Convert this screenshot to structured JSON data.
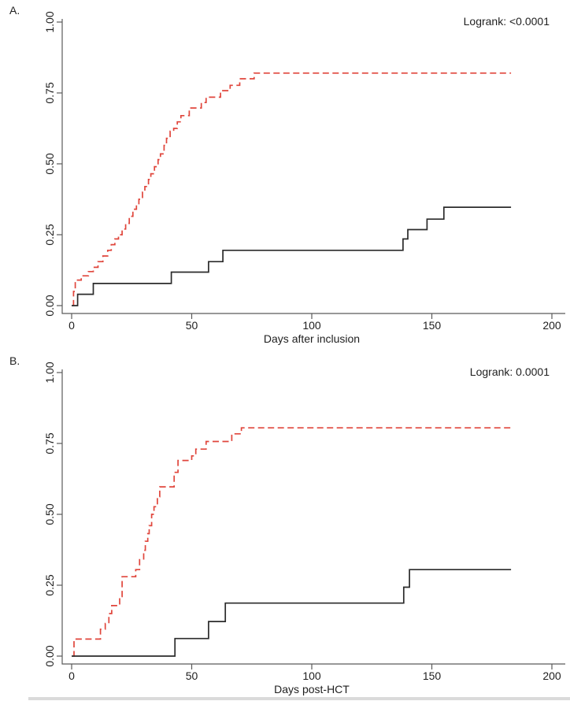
{
  "figure": {
    "background": "#ffffff",
    "bottom_rule_color": "#dadada"
  },
  "colors": {
    "red_series": "#e0463c",
    "black_series": "#2b2b2b",
    "axis": "#5a5a5a",
    "text": "#1f1f1f"
  },
  "chart_data": [
    {
      "type": "line",
      "subtype": "step-cumulative-incidence",
      "panel_label": "A.",
      "annotation": "Logrank: <0.0001",
      "title": "",
      "xlabel": "Days after inclusion",
      "ylabel": "",
      "xlim": [
        0,
        200
      ],
      "ylim": [
        0,
        1
      ],
      "grid": false,
      "legend": "none",
      "xticks": [
        0,
        50,
        100,
        150,
        200
      ],
      "xtick_labels": [
        "0",
        "50",
        "100",
        "150",
        "200"
      ],
      "yticks": [
        0,
        0.25,
        0.5,
        0.75,
        1
      ],
      "ytick_labels": [
        "0.00",
        "0.25",
        "0.50",
        "0.75",
        "1.00"
      ],
      "series": [
        {
          "name": "red-dashed",
          "color": "#e0463c",
          "line_style": "dashed",
          "end_x": 183,
          "points": [
            [
              0.5,
              0
            ],
            [
              0.8,
              0.05
            ],
            [
              1.5,
              0.09
            ],
            [
              4,
              0.105
            ],
            [
              7,
              0.12
            ],
            [
              9,
              0.135
            ],
            [
              11,
              0.155
            ],
            [
              13,
              0.175
            ],
            [
              15,
              0.195
            ],
            [
              16.5,
              0.215
            ],
            [
              18,
              0.235
            ],
            [
              19.5,
              0.25
            ],
            [
              21,
              0.27
            ],
            [
              22.5,
              0.29
            ],
            [
              24,
              0.315
            ],
            [
              25.5,
              0.34
            ],
            [
              27,
              0.355
            ],
            [
              28,
              0.375
            ],
            [
              29.5,
              0.4
            ],
            [
              30.5,
              0.42
            ],
            [
              32,
              0.445
            ],
            [
              33,
              0.465
            ],
            [
              34.5,
              0.49
            ],
            [
              36,
              0.515
            ],
            [
              37,
              0.535
            ],
            [
              38.5,
              0.565
            ],
            [
              39.5,
              0.59
            ],
            [
              41,
              0.615
            ],
            [
              42.5,
              0.625
            ],
            [
              44,
              0.648
            ],
            [
              45.5,
              0.67
            ],
            [
              49,
              0.697
            ],
            [
              54,
              0.716
            ],
            [
              56,
              0.735
            ],
            [
              62,
              0.758
            ],
            [
              66,
              0.777
            ],
            [
              70,
              0.8
            ],
            [
              76,
              0.82
            ]
          ]
        },
        {
          "name": "black-solid",
          "color": "#2b2b2b",
          "line_style": "solid",
          "end_x": 183,
          "points": [
            [
              0,
              0
            ],
            [
              2.5,
              0.04
            ],
            [
              9,
              0.078
            ],
            [
              41.5,
              0.118
            ],
            [
              57,
              0.155
            ],
            [
              63,
              0.195
            ],
            [
              138,
              0.235
            ],
            [
              140,
              0.268
            ],
            [
              148,
              0.305
            ],
            [
              155,
              0.347
            ]
          ]
        }
      ]
    },
    {
      "type": "line",
      "subtype": "step-cumulative-incidence",
      "panel_label": "B.",
      "annotation": "Logrank: 0.0001",
      "title": "",
      "xlabel": "Days post-HCT",
      "ylabel": "",
      "xlim": [
        0,
        200
      ],
      "ylim": [
        0,
        1
      ],
      "grid": false,
      "legend": "none",
      "xticks": [
        0,
        50,
        100,
        150,
        200
      ],
      "xtick_labels": [
        "0",
        "50",
        "100",
        "150",
        "200"
      ],
      "yticks": [
        0,
        0.25,
        0.5,
        0.75,
        1
      ],
      "ytick_labels": [
        "0.00",
        "0.25",
        "0.50",
        "0.75",
        "1.00"
      ],
      "series": [
        {
          "name": "red-dashed",
          "color": "#e0463c",
          "line_style": "dashed",
          "end_x": 183,
          "points": [
            [
              0.5,
              0
            ],
            [
              1,
              0.06
            ],
            [
              12,
              0.095
            ],
            [
              14,
              0.115
            ],
            [
              15.5,
              0.15
            ],
            [
              16.7,
              0.178
            ],
            [
              20,
              0.21
            ],
            [
              21,
              0.28
            ],
            [
              26.7,
              0.305
            ],
            [
              28.3,
              0.34
            ],
            [
              30,
              0.373
            ],
            [
              30.7,
              0.405
            ],
            [
              31.7,
              0.432
            ],
            [
              32.3,
              0.46
            ],
            [
              33.3,
              0.5
            ],
            [
              34.3,
              0.527
            ],
            [
              35.7,
              0.562
            ],
            [
              36.7,
              0.597
            ],
            [
              42.7,
              0.648
            ],
            [
              44.3,
              0.69
            ],
            [
              50,
              0.706
            ],
            [
              51.7,
              0.73
            ],
            [
              56,
              0.757
            ],
            [
              66.7,
              0.784
            ],
            [
              70.7,
              0.805
            ]
          ]
        },
        {
          "name": "black-solid",
          "color": "#2b2b2b",
          "line_style": "solid",
          "end_x": 183,
          "points": [
            [
              0,
              0
            ],
            [
              43,
              0.062
            ],
            [
              57,
              0.122
            ],
            [
              64,
              0.187
            ],
            [
              138.3,
              0.243
            ],
            [
              140.7,
              0.305
            ]
          ]
        }
      ]
    }
  ]
}
